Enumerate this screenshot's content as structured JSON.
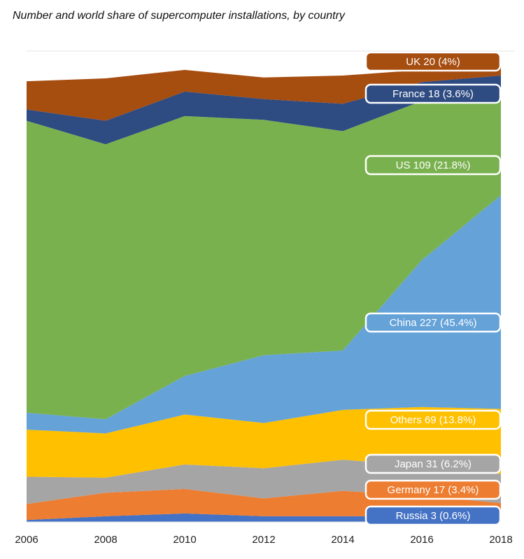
{
  "chart_data": {
    "type": "stacked_area",
    "title": "Number and world share of supercomputer installations, by country",
    "x": [
      2006,
      2008,
      2010,
      2012,
      2014,
      2016,
      2018
    ],
    "xlim": [
      2006,
      2018
    ],
    "xticks": [
      2006,
      2008,
      2010,
      2012,
      2014,
      2016,
      2018
    ],
    "ylim": [
      0,
      500
    ],
    "series": [
      {
        "name": "Russia",
        "color": "#4472c4",
        "values": [
          2,
          6,
          9,
          6,
          6,
          6,
          3
        ],
        "end_label": "Russia 3 (0.6%)"
      },
      {
        "name": "Germany",
        "color": "#ed7d31",
        "values": [
          17,
          25,
          26,
          19,
          27,
          22,
          17
        ],
        "end_label": "Germany 17 (3.4%)"
      },
      {
        "name": "Japan",
        "color": "#a5a5a5",
        "values": [
          29,
          16,
          26,
          32,
          33,
          32,
          31
        ],
        "end_label": "Japan 31 (6.2%)"
      },
      {
        "name": "Others",
        "color": "#ffc000",
        "values": [
          50,
          47,
          53,
          48,
          53,
          62,
          69
        ],
        "end_label": "Others 69 (13.8%)"
      },
      {
        "name": "China",
        "color": "#64a2d8",
        "values": [
          18,
          15,
          41,
          72,
          63,
          156,
          227
        ],
        "end_label": "China 227 (45.4%)"
      },
      {
        "name": "US",
        "color": "#7ab14f",
        "values": [
          310,
          292,
          276,
          250,
          233,
          169,
          109
        ],
        "end_label": "US 109 (21.8%)"
      },
      {
        "name": "France",
        "color": "#2e4b82",
        "values": [
          12,
          25,
          26,
          22,
          29,
          20,
          18
        ],
        "end_label": "France 18 (3.6%)"
      },
      {
        "name": "UK",
        "color": "#a64d10",
        "values": [
          30,
          45,
          23,
          23,
          30,
          13,
          20
        ],
        "end_label": "UK 20 (4%)"
      }
    ]
  }
}
